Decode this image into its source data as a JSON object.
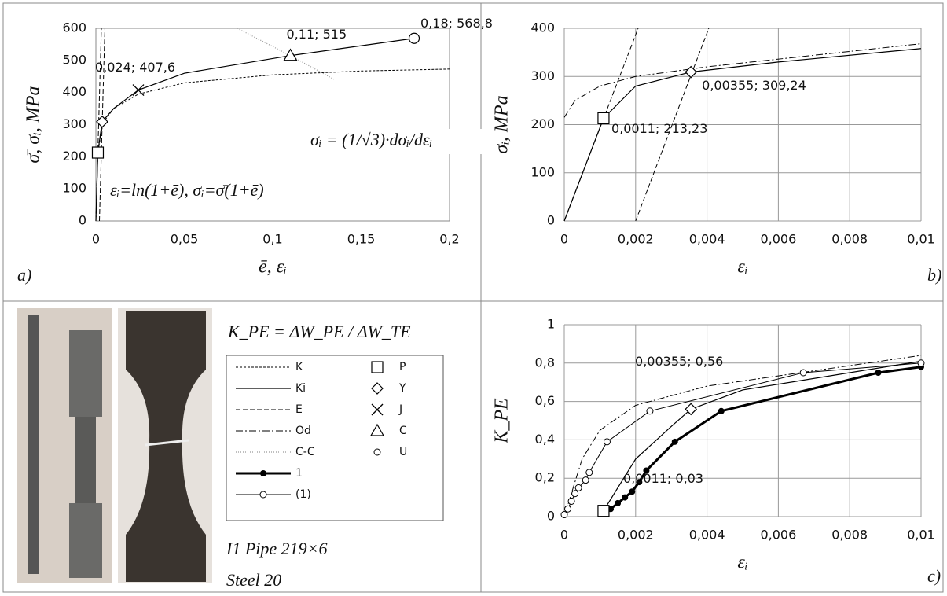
{
  "styles": {
    "lines": [
      {
        "name": "K",
        "dash": "3,2",
        "width": 1,
        "color": "#000000"
      },
      {
        "name": "Ki",
        "dash": "none",
        "width": 1.2,
        "color": "#000000"
      },
      {
        "name": "E",
        "dash": "6,3",
        "width": 1,
        "color": "#000000"
      },
      {
        "name": "Od",
        "dash": "9,3,2,3",
        "width": 1,
        "color": "#000000"
      },
      {
        "name": "C-C",
        "dash": "1,2",
        "width": 1.2,
        "color": "#999999"
      },
      {
        "name": "1",
        "dash": "none",
        "width": 3,
        "color": "#000000",
        "marker": "dot"
      },
      {
        "name": "(1)",
        "dash": "none",
        "width": 1,
        "color": "#000000",
        "marker": "circle"
      }
    ],
    "markers": [
      {
        "name": "P",
        "marker": "square"
      },
      {
        "name": "Y",
        "marker": "diamond"
      },
      {
        "name": "J",
        "marker": "cross"
      },
      {
        "name": "C",
        "marker": "triangle"
      },
      {
        "name": "U",
        "marker": "circle"
      }
    ]
  },
  "chart_data": [
    {
      "type": "line",
      "label": "a)",
      "xlabel": "ē, εᵢ",
      "ylabel": "σ̄, σᵢ, MPa",
      "grid": false,
      "xlim": [
        0,
        0.2
      ],
      "xticks": [
        0,
        {
          "value": 0.05,
          "label": "0,05"
        },
        {
          "value": 0.1,
          "label": "0,1"
        },
        {
          "value": 0.15,
          "label": "0,15"
        },
        {
          "value": 0.2,
          "label": "0,2"
        }
      ],
      "ylim": [
        0,
        600
      ],
      "yticks": [
        0,
        100,
        200,
        300,
        400,
        500,
        600
      ],
      "annotations": [
        "σᵢ = (1/√3)·dσᵢ/dεᵢ",
        "εᵢ=ln(1+ē), σᵢ=σ̄(1+ē)"
      ],
      "series": [
        {
          "name": "K",
          "x": [
            0,
            0.0011,
            0.004,
            0.01,
            0.024,
            0.05,
            0.1,
            0.15,
            0.2
          ],
          "values": [
            0,
            213,
            305,
            350,
            395,
            430,
            455,
            467,
            473
          ]
        },
        {
          "name": "Ki",
          "x": [
            0,
            0.0011,
            0.00355,
            0.01,
            0.024,
            0.05,
            0.11,
            0.18
          ],
          "values": [
            0,
            213,
            309,
            350,
            407.6,
            460,
            515,
            568.8
          ]
        },
        {
          "name": "E",
          "x": [
            0,
            0.0031,
            0.002,
            0.002,
            0.0051
          ],
          "values": [
            0,
            600,
            null,
            0,
            600
          ]
        },
        {
          "name": "C-C",
          "x": [
            0.08,
            0.11,
            0.135
          ],
          "values": [
            600,
            515,
            440
          ]
        },
        {
          "name": "P",
          "x": [
            0.0011
          ],
          "values": [
            213
          ]
        },
        {
          "name": "Y",
          "x": [
            0.00355
          ],
          "values": [
            309
          ]
        },
        {
          "name": "J",
          "x": [
            0.024
          ],
          "values": [
            407.6
          ],
          "value_labels": [
            "0,024; 407,6"
          ]
        },
        {
          "name": "C",
          "x": [
            0.11
          ],
          "values": [
            515
          ],
          "value_labels": [
            "0,11; 515"
          ]
        },
        {
          "name": "U",
          "x": [
            0.18
          ],
          "values": [
            568.8
          ],
          "value_labels": [
            "0,18; 568,8"
          ]
        }
      ]
    },
    {
      "type": "line",
      "label": "b)",
      "xlabel": "εᵢ",
      "ylabel": "σᵢ, MPa",
      "grid": true,
      "xlim": [
        0,
        0.01
      ],
      "xticks": [
        0,
        {
          "value": 0.002,
          "label": "0,002"
        },
        {
          "value": 0.004,
          "label": "0,004"
        },
        {
          "value": 0.006,
          "label": "0,006"
        },
        {
          "value": 0.008,
          "label": "0,008"
        },
        {
          "value": 0.01,
          "label": "0,01"
        }
      ],
      "ylim": [
        0,
        400
      ],
      "yticks": [
        0,
        100,
        200,
        300,
        400
      ],
      "series": [
        {
          "name": "Ki",
          "x": [
            0,
            0.0011,
            0.002,
            0.00355,
            0.006,
            0.01
          ],
          "values": [
            0,
            213.23,
            280,
            309.24,
            330,
            358
          ]
        },
        {
          "name": "Od",
          "x": [
            0,
            0.0003,
            0.001,
            0.002,
            0.004,
            0.01
          ],
          "values": [
            215,
            250,
            280,
            300,
            320,
            368
          ]
        },
        {
          "name": "E",
          "x": [
            0,
            0.00207,
            0.003,
            0.002,
            0.00405
          ],
          "values": [
            0,
            400,
            null,
            0,
            400
          ]
        },
        {
          "name": "P",
          "x": [
            0.0011
          ],
          "values": [
            213.23
          ],
          "value_labels": [
            "0,0011; 213,23"
          ]
        },
        {
          "name": "Y",
          "x": [
            0.00355
          ],
          "values": [
            309.24
          ],
          "value_labels": [
            "0,00355; 309,24"
          ]
        }
      ]
    },
    {
      "type": "line",
      "label": "c)",
      "xlabel": "εᵢ",
      "ylabel": "K_PE",
      "grid": true,
      "xlim": [
        0,
        0.01
      ],
      "xticks": [
        0,
        {
          "value": 0.002,
          "label": "0,002"
        },
        {
          "value": 0.004,
          "label": "0,004"
        },
        {
          "value": 0.006,
          "label": "0,006"
        },
        {
          "value": 0.008,
          "label": "0,008"
        },
        {
          "value": 0.01,
          "label": "0,01"
        }
      ],
      "ylim": [
        0,
        1
      ],
      "yticks": [
        0,
        {
          "value": 0.2,
          "label": "0,2"
        },
        {
          "value": 0.4,
          "label": "0,4"
        },
        {
          "value": 0.6,
          "label": "0,6"
        },
        {
          "value": 0.8,
          "label": "0,8"
        },
        1
      ],
      "series": [
        {
          "name": "Od",
          "x": [
            0,
            0.0005,
            0.001,
            0.002,
            0.004,
            0.01
          ],
          "values": [
            0,
            0.3,
            0.45,
            0.58,
            0.68,
            0.84
          ]
        },
        {
          "name": "Ki",
          "x": [
            0.0011,
            0.002,
            0.003,
            0.00355,
            0.005,
            0.01
          ],
          "values": [
            0.03,
            0.3,
            0.47,
            0.56,
            0.66,
            0.81
          ]
        },
        {
          "name": "1",
          "x": [
            0.0011,
            0.0013,
            0.0015,
            0.0017,
            0.0019,
            0.0021,
            0.0023,
            0.0031,
            0.0044,
            0.0088,
            0.01
          ],
          "values": [
            0.03,
            0.04,
            0.07,
            0.1,
            0.13,
            0.18,
            0.24,
            0.39,
            0.55,
            0.75,
            0.78
          ]
        },
        {
          "name": "(1)",
          "x": [
            0,
            0.0001,
            0.0002,
            0.0003,
            0.0004,
            0.0006,
            0.0007,
            0.0012,
            0.0024,
            0.0067,
            0.01
          ],
          "values": [
            0.01,
            0.04,
            0.08,
            0.12,
            0.15,
            0.19,
            0.23,
            0.39,
            0.55,
            0.75,
            0.8
          ]
        },
        {
          "name": "P",
          "x": [
            0.0011
          ],
          "values": [
            0.03
          ],
          "value_labels": [
            "0,0011; 0,03"
          ]
        },
        {
          "name": "Y",
          "x": [
            0.00355
          ],
          "values": [
            0.56
          ],
          "value_labels": [
            "0,00355; 0,56"
          ]
        }
      ]
    }
  ],
  "specimen": {
    "formula": "K_PE = ΔW_PE / ΔW_TE",
    "caption": "I1  Pipe 219×6",
    "material": "Steel 20"
  }
}
